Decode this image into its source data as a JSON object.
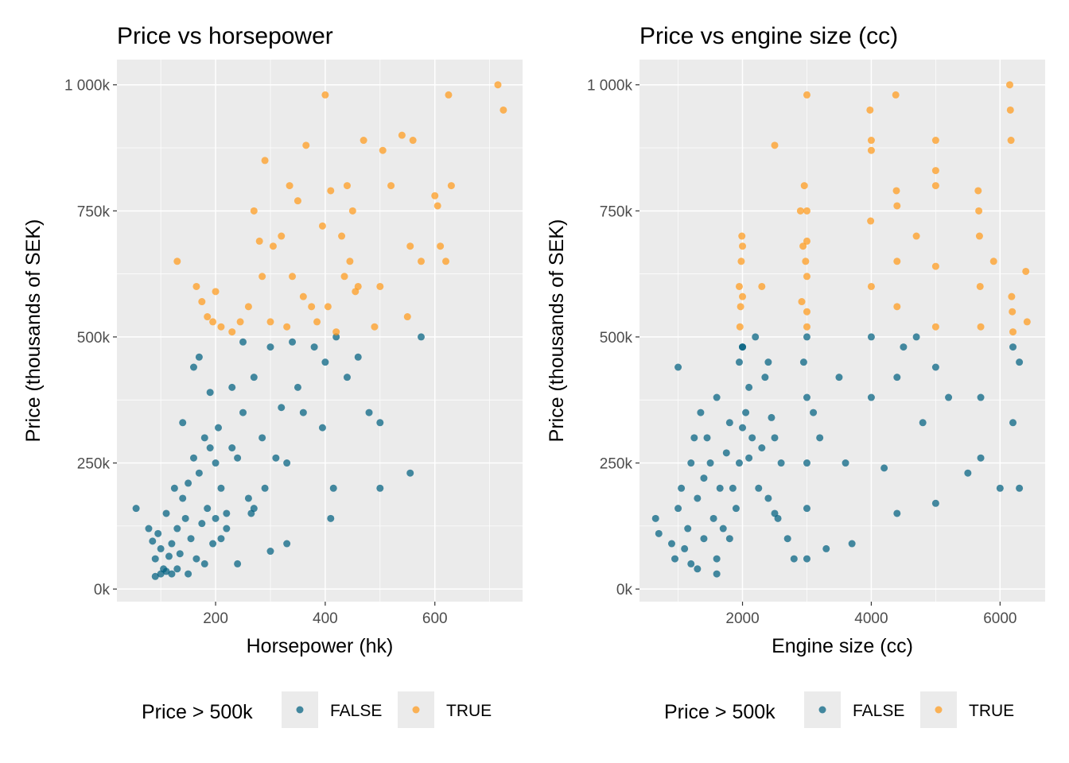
{
  "legend_title": "Price > 500k",
  "colors": {
    "false": "#006080",
    "true": "#FF9A1A",
    "panel": "#EBEBEB",
    "grid": "#FFFFFF"
  },
  "chart_data": [
    {
      "type": "scatter",
      "title": "Price vs horsepower",
      "xlabel": "Horsepower (hk)",
      "ylabel": "Price (thousands of SEK)",
      "xlim": [
        20,
        760
      ],
      "ylim": [
        -25000,
        1050000
      ],
      "x_ticks": [
        200,
        400,
        600
      ],
      "x_tick_labels": [
        "200",
        "400",
        "600"
      ],
      "y_ticks": [
        0,
        250000,
        500000,
        750000,
        1000000
      ],
      "y_tick_labels": [
        "0k",
        "250k",
        "500k",
        "750k",
        "1 000k"
      ],
      "grid": true,
      "legend_position": "bottom",
      "series": [
        {
          "name": "FALSE",
          "x": [
            55,
            78,
            85,
            90,
            95,
            100,
            105,
            110,
            115,
            120,
            125,
            130,
            135,
            140,
            145,
            150,
            155,
            160,
            165,
            170,
            175,
            180,
            185,
            190,
            195,
            200,
            205,
            210,
            220,
            230,
            240,
            250,
            260,
            270,
            285,
            300,
            330,
            350,
            360,
            400,
            415,
            480,
            500,
            555,
            575,
            300,
            330,
            395,
            410,
            240,
            270,
            180,
            150,
            130,
            120,
            110,
            100,
            90,
            200,
            210,
            220,
            160,
            170,
            250,
            320,
            340,
            380,
            420,
            440,
            460,
            230,
            265,
            290,
            310,
            140,
            190,
            500
          ],
          "y": [
            160000,
            120000,
            95000,
            60000,
            110000,
            80000,
            40000,
            150000,
            65000,
            90000,
            200000,
            120000,
            70000,
            180000,
            140000,
            210000,
            100000,
            260000,
            60000,
            230000,
            130000,
            300000,
            160000,
            280000,
            90000,
            250000,
            320000,
            200000,
            150000,
            400000,
            260000,
            350000,
            180000,
            420000,
            300000,
            480000,
            250000,
            400000,
            350000,
            450000,
            200000,
            350000,
            330000,
            230000,
            500000,
            75000,
            90000,
            320000,
            140000,
            50000,
            160000,
            50000,
            30000,
            40000,
            30000,
            35000,
            30000,
            25000,
            140000,
            100000,
            120000,
            440000,
            460000,
            490000,
            360000,
            490000,
            480000,
            500000,
            420000,
            460000,
            280000,
            150000,
            200000,
            260000,
            330000,
            390000,
            200000
          ]
        },
        {
          "name": "TRUE",
          "x": [
            130,
            165,
            175,
            185,
            195,
            200,
            210,
            230,
            245,
            260,
            270,
            280,
            285,
            290,
            300,
            305,
            320,
            330,
            335,
            340,
            350,
            360,
            365,
            375,
            385,
            395,
            400,
            405,
            410,
            420,
            430,
            435,
            440,
            445,
            450,
            455,
            460,
            470,
            490,
            500,
            505,
            520,
            540,
            550,
            555,
            560,
            575,
            600,
            605,
            610,
            620,
            625,
            630,
            715,
            725
          ],
          "y": [
            650000,
            600000,
            570000,
            540000,
            530000,
            590000,
            520000,
            510000,
            530000,
            560000,
            750000,
            690000,
            620000,
            850000,
            530000,
            680000,
            700000,
            520000,
            800000,
            620000,
            770000,
            580000,
            880000,
            560000,
            530000,
            720000,
            980000,
            560000,
            790000,
            510000,
            700000,
            620000,
            800000,
            650000,
            750000,
            590000,
            600000,
            890000,
            520000,
            600000,
            870000,
            800000,
            900000,
            540000,
            680000,
            890000,
            650000,
            780000,
            760000,
            680000,
            650000,
            980000,
            800000,
            1000000,
            950000
          ]
        }
      ]
    },
    {
      "type": "scatter",
      "title": "Price vs engine size (cc)",
      "xlabel": "Engine size (cc)",
      "ylabel": "Price (thousands of SEK)",
      "xlim": [
        400,
        6700
      ],
      "ylim": [
        -25000,
        1050000
      ],
      "x_ticks": [
        2000,
        4000,
        6000
      ],
      "x_tick_labels": [
        "2000",
        "4000",
        "6000"
      ],
      "y_ticks": [
        0,
        250000,
        500000,
        750000,
        1000000
      ],
      "y_tick_labels": [
        "0k",
        "250k",
        "500k",
        "750k",
        "1 000k"
      ],
      "grid": true,
      "legend_position": "bottom",
      "series": [
        {
          "name": "FALSE",
          "x": [
            650,
            700,
            900,
            950,
            1000,
            1000,
            1050,
            1100,
            1150,
            1200,
            1200,
            1250,
            1300,
            1350,
            1400,
            1400,
            1450,
            1500,
            1550,
            1600,
            1600,
            1650,
            1700,
            1750,
            1800,
            1800,
            1850,
            1900,
            1950,
            1950,
            2000,
            2000,
            2050,
            2100,
            2150,
            2200,
            2250,
            2300,
            2350,
            2400,
            2450,
            2500,
            2550,
            2600,
            2700,
            2800,
            2950,
            3000,
            3000,
            3000,
            3000,
            3000,
            3100,
            3200,
            3300,
            3500,
            3600,
            3700,
            4000,
            4000,
            4200,
            4400,
            4400,
            4500,
            4700,
            4800,
            5000,
            5000,
            5200,
            5500,
            5700,
            5700,
            6000,
            6200,
            6200,
            6300,
            6300,
            1300,
            1600,
            2000,
            2100,
            2400,
            2500
          ],
          "y": [
            140000,
            110000,
            90000,
            60000,
            160000,
            440000,
            200000,
            80000,
            120000,
            250000,
            50000,
            300000,
            180000,
            350000,
            100000,
            220000,
            300000,
            250000,
            140000,
            380000,
            60000,
            200000,
            120000,
            270000,
            100000,
            330000,
            200000,
            160000,
            450000,
            250000,
            320000,
            480000,
            350000,
            260000,
            300000,
            500000,
            200000,
            280000,
            420000,
            180000,
            340000,
            300000,
            140000,
            250000,
            100000,
            60000,
            450000,
            500000,
            380000,
            250000,
            160000,
            60000,
            350000,
            300000,
            80000,
            420000,
            250000,
            90000,
            380000,
            500000,
            240000,
            150000,
            420000,
            480000,
            500000,
            330000,
            170000,
            440000,
            380000,
            230000,
            260000,
            380000,
            200000,
            480000,
            330000,
            200000,
            450000,
            40000,
            30000,
            480000,
            400000,
            450000,
            150000
          ]
        },
        {
          "name": "TRUE",
          "x": [
            1950,
            1960,
            1970,
            1980,
            1990,
            2000,
            2000,
            2300,
            2500,
            2900,
            2920,
            2940,
            2960,
            2980,
            3000,
            3000,
            3000,
            3000,
            3000,
            3000,
            3980,
            3990,
            4000,
            4000,
            4000,
            4380,
            4390,
            4400,
            4400,
            4400,
            4700,
            5000,
            5000,
            5000,
            5000,
            5000,
            5660,
            5670,
            5680,
            5690,
            5700,
            5900,
            6150,
            6160,
            6170,
            6180,
            6190,
            6200,
            6400,
            6420
          ],
          "y": [
            600000,
            520000,
            560000,
            650000,
            700000,
            580000,
            680000,
            600000,
            880000,
            750000,
            570000,
            680000,
            800000,
            650000,
            980000,
            750000,
            690000,
            620000,
            550000,
            520000,
            950000,
            730000,
            890000,
            870000,
            600000,
            980000,
            790000,
            760000,
            650000,
            560000,
            700000,
            890000,
            830000,
            800000,
            640000,
            520000,
            790000,
            750000,
            700000,
            600000,
            520000,
            650000,
            1000000,
            950000,
            890000,
            580000,
            550000,
            510000,
            630000,
            530000
          ]
        }
      ]
    }
  ]
}
